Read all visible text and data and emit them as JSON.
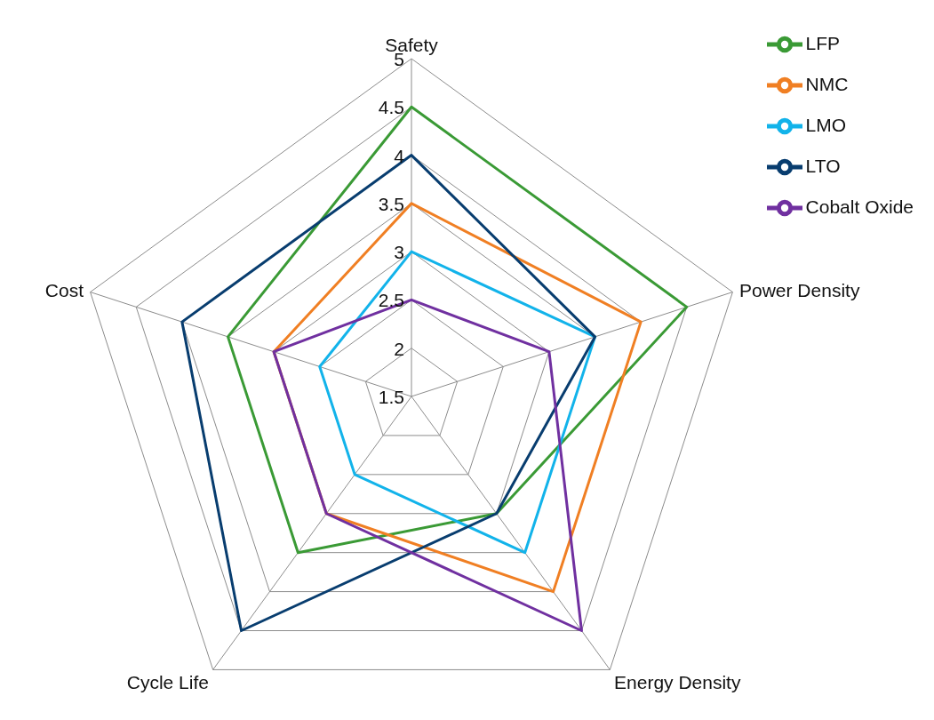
{
  "chart_data": {
    "type": "radar",
    "categories": [
      "Safety",
      "Power Density",
      "Energy Density",
      "Cycle Life",
      "Cost"
    ],
    "ylim": [
      1.5,
      5
    ],
    "yticks": [
      1.5,
      2,
      2.5,
      3,
      3.5,
      4,
      4.5,
      5
    ],
    "grid": true,
    "legend": "top right",
    "marker": "none",
    "line_style": "solid",
    "series": [
      {
        "name": "LFP",
        "color": "#3a9a35",
        "values": [
          4.5,
          4.5,
          3,
          3.5,
          3.5
        ]
      },
      {
        "name": "NMC",
        "color": "#f07f23",
        "values": [
          3.5,
          4,
          4,
          3,
          3
        ]
      },
      {
        "name": "LMO",
        "color": "#12b3ea",
        "values": [
          3,
          3.5,
          3.5,
          2.5,
          2.5
        ]
      },
      {
        "name": "LTO",
        "color": "#083d6f",
        "values": [
          4,
          3.5,
          3,
          4.5,
          4
        ]
      },
      {
        "name": "Cobalt Oxide",
        "color": "#7030a0",
        "values": [
          2.5,
          3,
          4.5,
          3,
          3
        ]
      }
    ]
  }
}
